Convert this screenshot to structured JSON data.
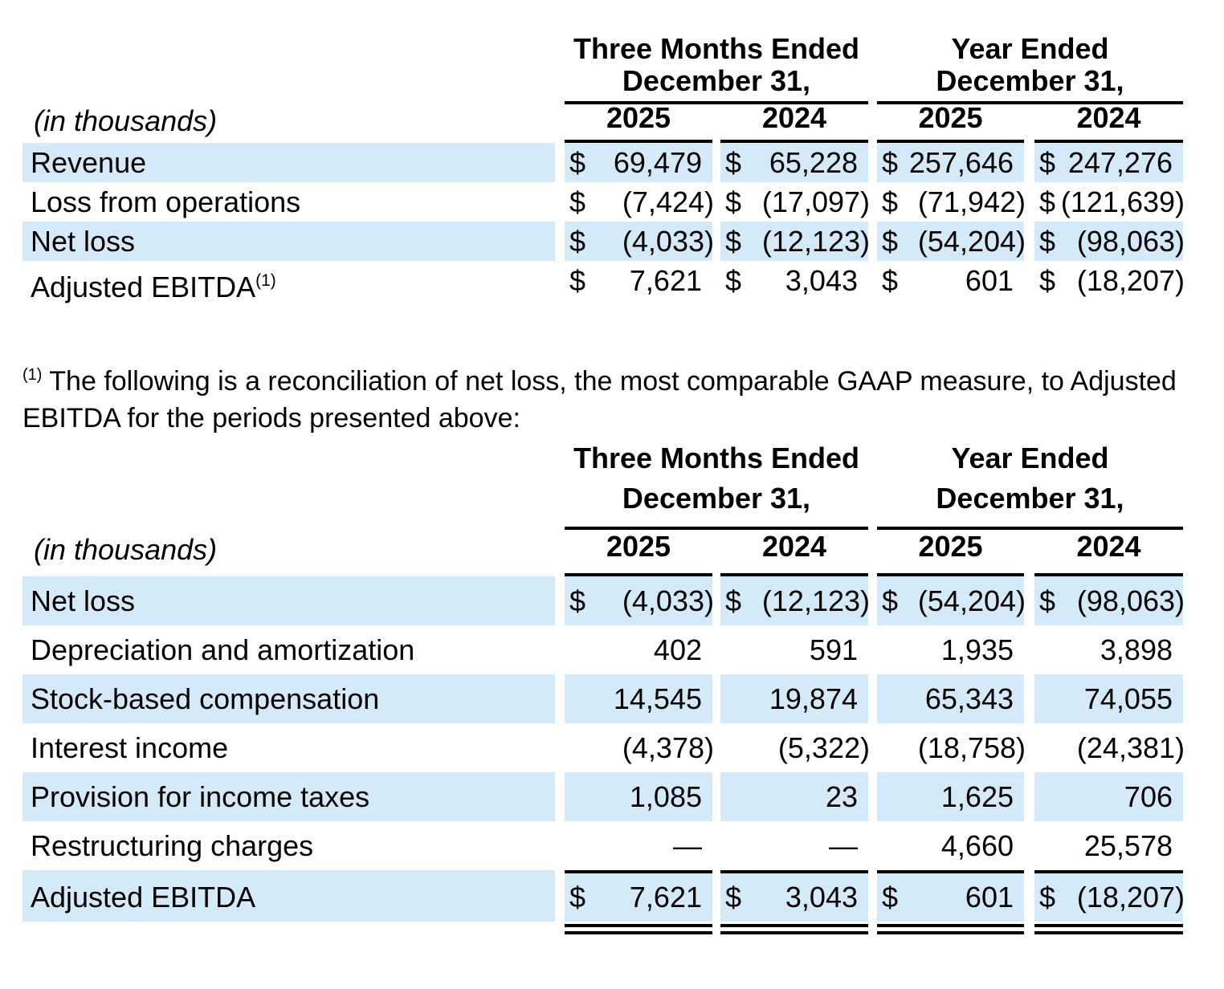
{
  "currency": "$",
  "table1": {
    "in_thousands_label": "(in thousands)",
    "period_groups": [
      {
        "title": "Three Months Ended",
        "subtitle": "December 31,",
        "years": [
          "2025",
          "2024"
        ]
      },
      {
        "title": "Year Ended",
        "subtitle": "December 31,",
        "years": [
          "2025",
          "2024"
        ]
      }
    ],
    "rows": [
      {
        "label": "Revenue",
        "values": [
          "69,479",
          "65,228",
          "257,646",
          "247,276"
        ]
      },
      {
        "label": "Loss from operations",
        "values": [
          "(7,424)",
          "(17,097)",
          "(71,942)",
          "(121,639)"
        ]
      },
      {
        "label": "Net loss",
        "values": [
          "(4,033)",
          "(12,123)",
          "(54,204)",
          "(98,063)"
        ]
      },
      {
        "label": "Adjusted EBITDA",
        "footnote_marker": "(1)",
        "values": [
          "7,621",
          "3,043",
          "601",
          "(18,207)"
        ]
      }
    ]
  },
  "footnote": {
    "marker": "(1)",
    "text": " The following is a reconciliation of net loss, the most comparable GAAP measure, to Adjusted EBITDA for the periods presented above:"
  },
  "table2": {
    "in_thousands_label": "(in thousands)",
    "period_groups": [
      {
        "title": "Three Months Ended",
        "subtitle": "December 31,",
        "years": [
          "2025",
          "2024"
        ]
      },
      {
        "title": "Year Ended",
        "subtitle": "December 31,",
        "years": [
          "2025",
          "2024"
        ]
      }
    ],
    "rows": [
      {
        "label": "Net loss",
        "values": [
          "(4,033)",
          "(12,123)",
          "(54,204)",
          "(98,063)"
        ]
      },
      {
        "label": "Depreciation and amortization",
        "values": [
          "402",
          "591",
          "1,935",
          "3,898"
        ]
      },
      {
        "label": "Stock-based compensation",
        "values": [
          "14,545",
          "19,874",
          "65,343",
          "74,055"
        ]
      },
      {
        "label": "Interest income",
        "values": [
          "(4,378)",
          "(5,322)",
          "(18,758)",
          "(24,381)"
        ]
      },
      {
        "label": "Provision for income taxes",
        "values": [
          "1,085",
          "23",
          "1,625",
          "706"
        ]
      },
      {
        "label": "Restructuring charges",
        "values": [
          "—",
          "—",
          "4,660",
          "25,578"
        ]
      },
      {
        "label": "Adjusted EBITDA",
        "values": [
          "7,621",
          "3,043",
          "601",
          "(18,207)"
        ]
      }
    ]
  }
}
